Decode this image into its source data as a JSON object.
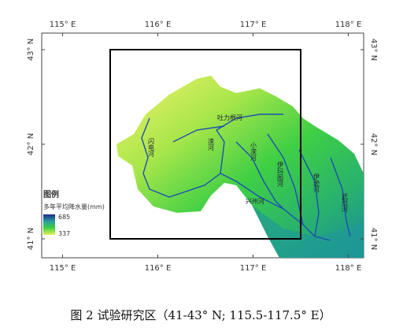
{
  "map": {
    "xticks": [
      {
        "value": 115,
        "label": "115° E"
      },
      {
        "value": 116,
        "label": "116° E"
      },
      {
        "value": 117,
        "label": "117° E"
      },
      {
        "value": 118,
        "label": "118° E"
      }
    ],
    "yticks": [
      {
        "value": 43,
        "label": "43° N"
      },
      {
        "value": 42,
        "label": "42° N"
      },
      {
        "value": 41,
        "label": "41° N"
      }
    ],
    "study_area": {
      "lon": [
        115.5,
        117.5
      ],
      "lat": [
        41,
        43
      ]
    },
    "legend": {
      "title": "图例",
      "subtitle": "多年平均降水量(mm)",
      "max": 685,
      "min": 337
    },
    "rivers": [
      "闪电河",
      "滦河",
      "吐力根河",
      "小滦河",
      "伊玛图河",
      "伊逊河",
      "武烈河",
      "兴州河"
    ]
  },
  "caption": "图 2 试验研究区（41-43° N; 115.5-117.5° E）"
}
